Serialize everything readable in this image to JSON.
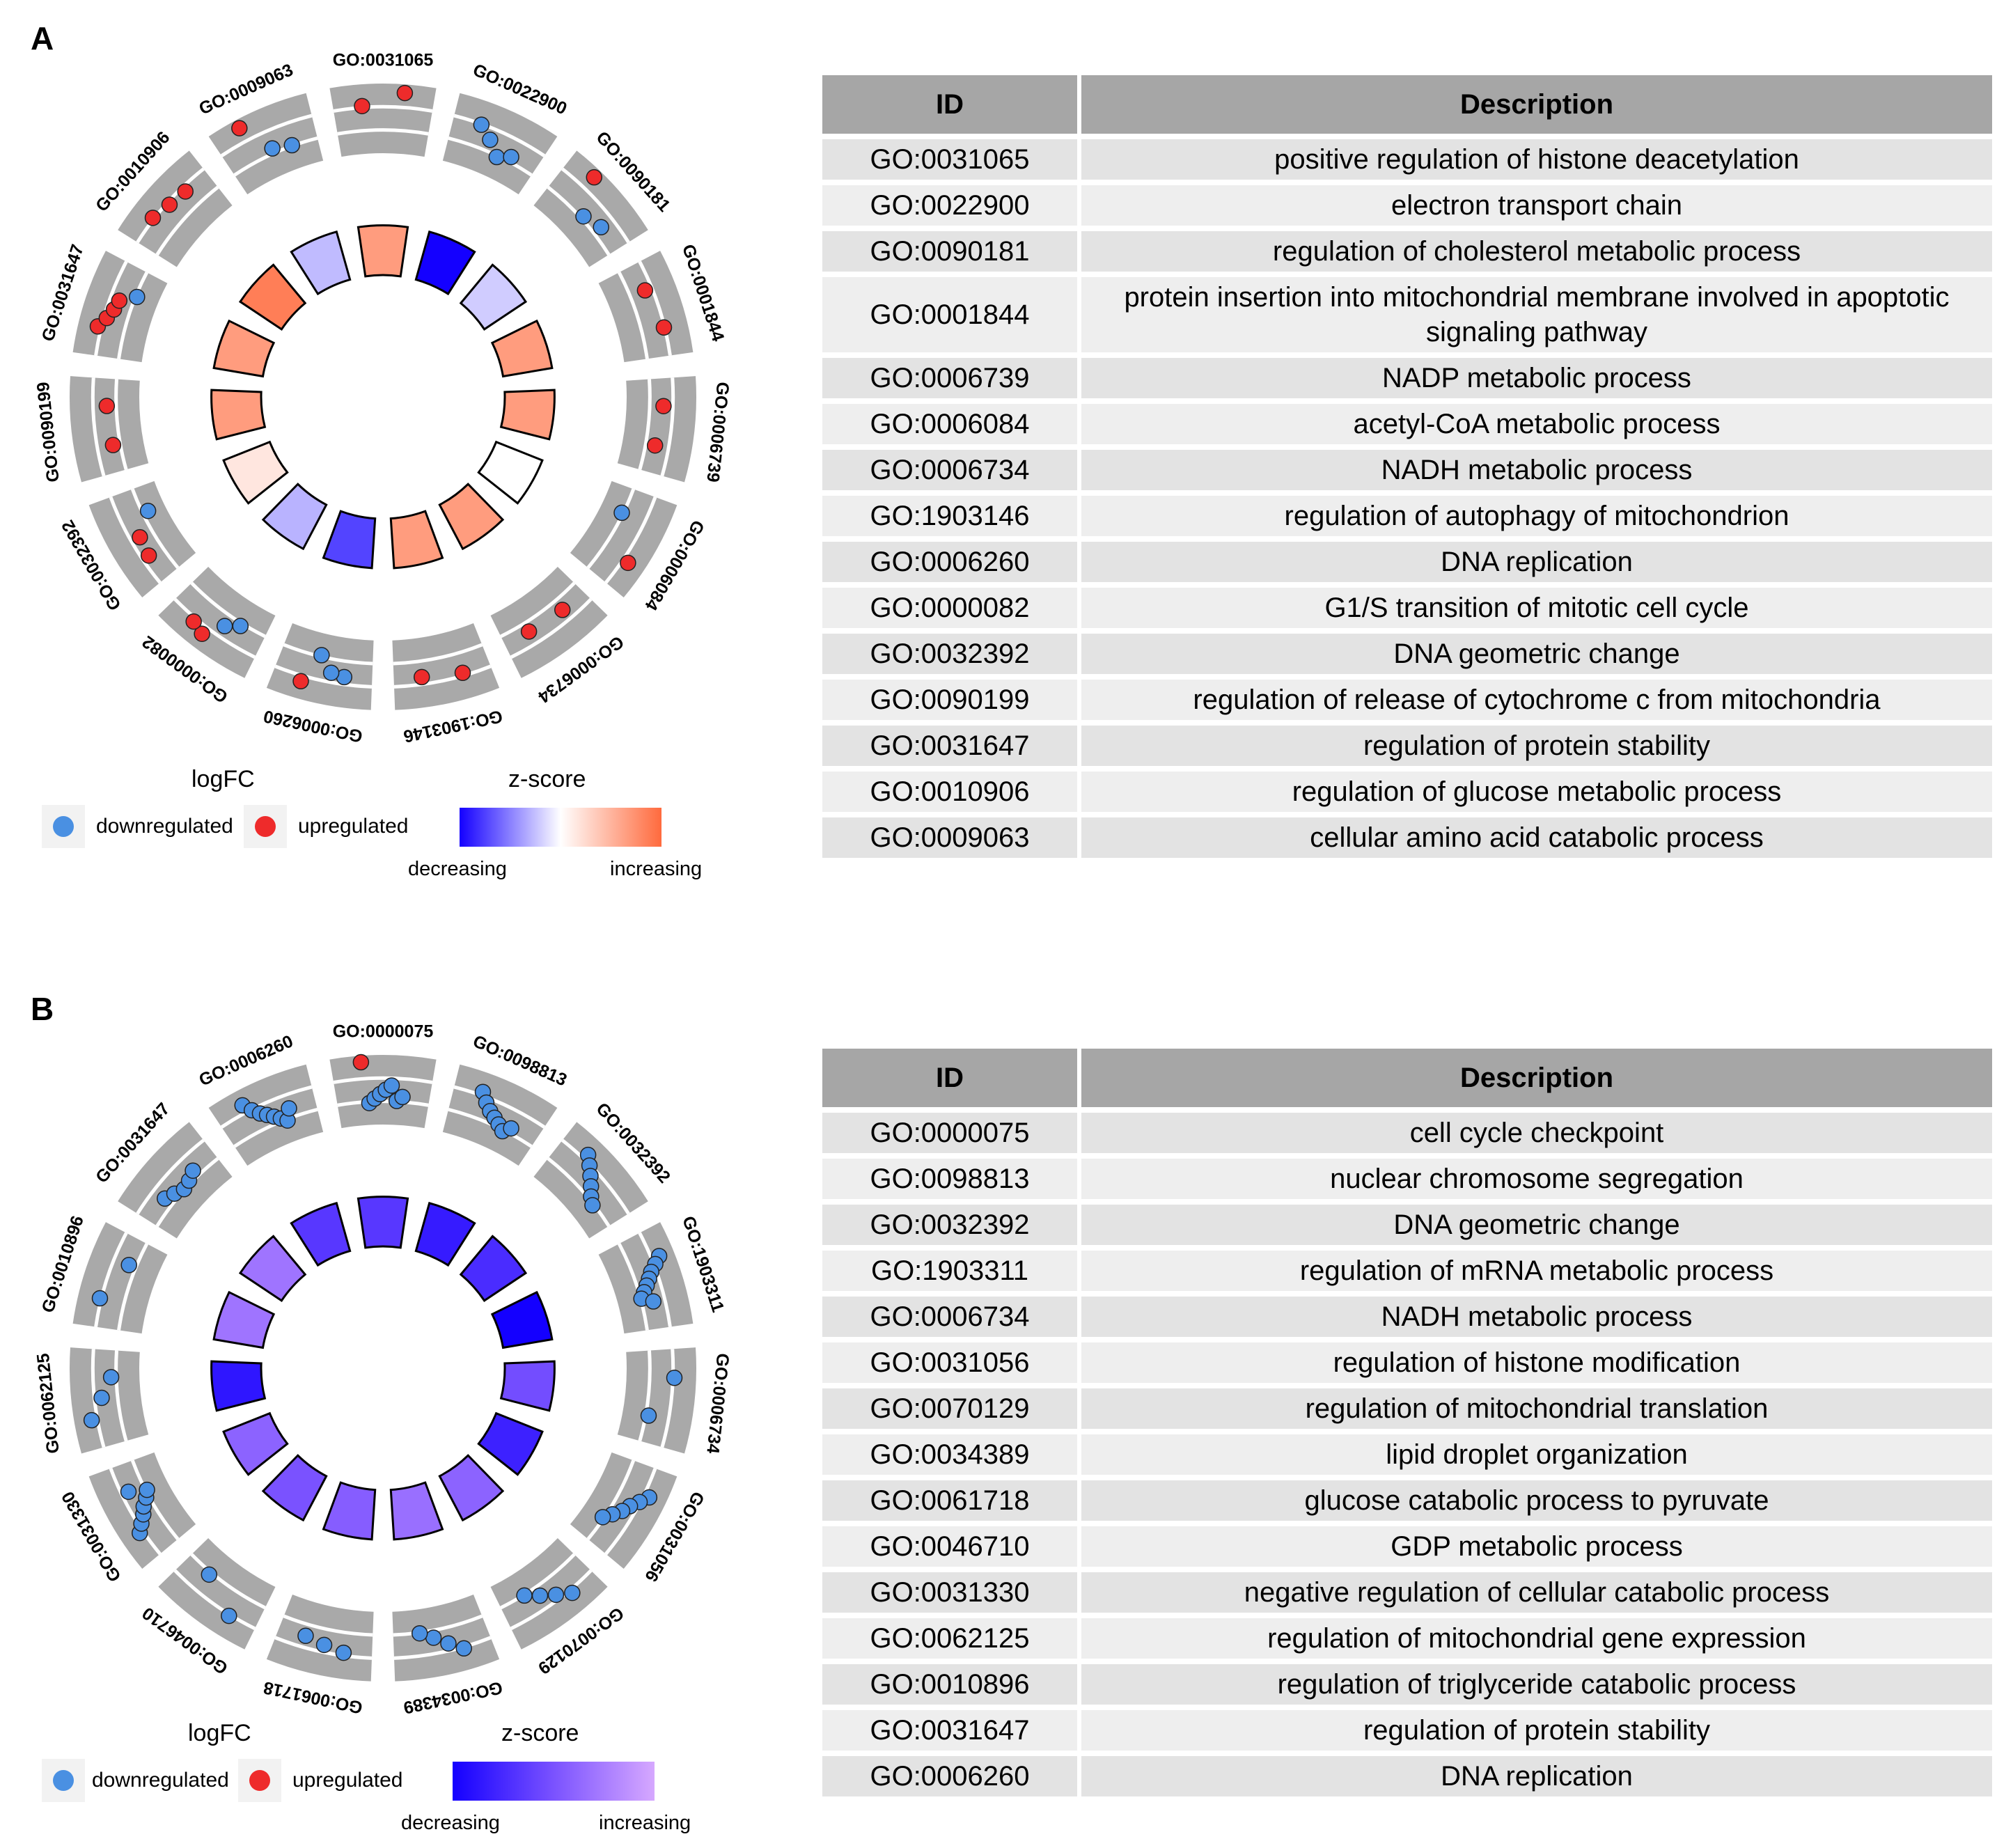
{
  "panels": [
    {
      "letter": "A",
      "logfc_legend": {
        "title": "logFC",
        "down_label": "downregulated",
        "up_label": "upregulated"
      },
      "zscore_legend": {
        "title": "z-score",
        "low_label": "decreasing",
        "high_label": "increasing",
        "low_color": "#1400ff",
        "mid_color": "#ffffff",
        "high_color": "#ff6a3d"
      },
      "table": {
        "headers": [
          "ID",
          "Description"
        ],
        "rows": [
          [
            "GO:0031065",
            "positive regulation of histone deacetylation"
          ],
          [
            "GO:0022900",
            "electron transport chain"
          ],
          [
            "GO:0090181",
            "regulation of cholesterol metabolic process"
          ],
          [
            "GO:0001844",
            "protein insertion into mitochondrial membrane involved in apoptotic signaling pathway"
          ],
          [
            "GO:0006739",
            "NADP metabolic process"
          ],
          [
            "GO:0006084",
            "acetyl-CoA metabolic process"
          ],
          [
            "GO:0006734",
            "NADH metabolic process"
          ],
          [
            "GO:1903146",
            "regulation of autophagy of mitochondrion"
          ],
          [
            "GO:0006260",
            "DNA replication"
          ],
          [
            "GO:0000082",
            "G1/S transition of mitotic cell cycle"
          ],
          [
            "GO:0032392",
            "DNA geometric change"
          ],
          [
            "GO:0090199",
            "regulation of release of cytochrome c from mitochondria"
          ],
          [
            "GO:0031647",
            "regulation of protein stability"
          ],
          [
            "GO:0010906",
            "regulation of glucose metabolic process"
          ],
          [
            "GO:0009063",
            "cellular amino acid catabolic process"
          ]
        ]
      }
    },
    {
      "letter": "B",
      "logfc_legend": {
        "title": "logFC",
        "down_label": "downregulated",
        "up_label": "upregulated"
      },
      "zscore_legend": {
        "title": "z-score",
        "low_label": "decreasing",
        "high_label": "increasing",
        "low_color": "#1400ff",
        "mid_color": "#7a52ff",
        "high_color": "#d6a8ff"
      },
      "table": {
        "headers": [
          "ID",
          "Description"
        ],
        "rows": [
          [
            "GO:0000075",
            "cell cycle checkpoint"
          ],
          [
            "GO:0098813",
            "nuclear chromosome segregation"
          ],
          [
            "GO:0032392",
            "DNA geometric change"
          ],
          [
            "GO:1903311",
            "regulation of mRNA metabolic process"
          ],
          [
            "GO:0006734",
            "NADH metabolic process"
          ],
          [
            "GO:0031056",
            "regulation of histone modification"
          ],
          [
            "GO:0070129",
            "regulation of mitochondrial translation"
          ],
          [
            "GO:0034389",
            "lipid droplet organization"
          ],
          [
            "GO:0061718",
            "glucose catabolic process to pyruvate"
          ],
          [
            "GO:0046710",
            "GDP metabolic process"
          ],
          [
            "GO:0031330",
            "negative regulation of cellular catabolic process"
          ],
          [
            "GO:0062125",
            "regulation of mitochondrial gene expression"
          ],
          [
            "GO:0010896",
            "regulation of triglyceride catabolic process"
          ],
          [
            "GO:0031647",
            "regulation of protein stability"
          ],
          [
            "GO:0006260",
            "DNA replication"
          ]
        ]
      }
    }
  ],
  "chart_data": [
    {
      "type": "circular-goplot",
      "panel": "A",
      "logfc_legend_title": "logFC",
      "zscore_legend_title": "z-score",
      "zscore_range": [
        -3,
        3
      ],
      "terms": [
        {
          "id": "GO:0031065",
          "zscore": 2.0,
          "bar_height": 0.85,
          "genes": [
            {
              "lfc": 2.2,
              "dir": "up"
            },
            {
              "lfc": 2.8,
              "dir": "up"
            }
          ]
        },
        {
          "id": "GO:0022900",
          "zscore": -3.0,
          "bar_height": 0.85,
          "genes": [
            {
              "lfc": 2.1,
              "dir": "down"
            },
            {
              "lfc": 1.6,
              "dir": "down"
            },
            {
              "lfc": 1.0,
              "dir": "down"
            },
            {
              "lfc": 1.3,
              "dir": "down"
            }
          ]
        },
        {
          "id": "GO:0090181",
          "zscore": -0.6,
          "bar_height": 0.85,
          "genes": [
            {
              "lfc": 2.8,
              "dir": "up"
            },
            {
              "lfc": 1.2,
              "dir": "down"
            },
            {
              "lfc": 1.5,
              "dir": "down"
            }
          ]
        },
        {
          "id": "GO:0001844",
          "zscore": 2.0,
          "bar_height": 0.85,
          "genes": [
            {
              "lfc": 1.8,
              "dir": "up"
            },
            {
              "lfc": 2.1,
              "dir": "up"
            }
          ]
        },
        {
          "id": "GO:0006739",
          "zscore": 2.0,
          "bar_height": 0.85,
          "genes": [
            {
              "lfc": 1.7,
              "dir": "up"
            },
            {
              "lfc": 1.5,
              "dir": "up"
            }
          ]
        },
        {
          "id": "GO:0006084",
          "zscore": 0.0,
          "bar_height": 0.85,
          "genes": [
            {
              "lfc": 1.0,
              "dir": "down"
            },
            {
              "lfc": 2.4,
              "dir": "up"
            }
          ]
        },
        {
          "id": "GO:0006734",
          "zscore": 2.0,
          "bar_height": 0.85,
          "genes": [
            {
              "lfc": 1.6,
              "dir": "up"
            },
            {
              "lfc": 1.5,
              "dir": "up"
            }
          ]
        },
        {
          "id": "GO:1903146",
          "zscore": 2.0,
          "bar_height": 0.85,
          "genes": [
            {
              "lfc": 2.0,
              "dir": "up"
            },
            {
              "lfc": 1.8,
              "dir": "up"
            }
          ]
        },
        {
          "id": "GO:0006260",
          "zscore": -2.2,
          "bar_height": 0.85,
          "genes": [
            {
              "lfc": 1.8,
              "dir": "down"
            },
            {
              "lfc": 1.7,
              "dir": "down"
            },
            {
              "lfc": 1.0,
              "dir": "down"
            },
            {
              "lfc": 2.4,
              "dir": "up"
            }
          ]
        },
        {
          "id": "GO:0000082",
          "zscore": -0.9,
          "bar_height": 0.85,
          "genes": [
            {
              "lfc": 1.2,
              "dir": "down"
            },
            {
              "lfc": 1.6,
              "dir": "down"
            },
            {
              "lfc": 2.5,
              "dir": "up"
            },
            {
              "lfc": 2.3,
              "dir": "up"
            }
          ]
        },
        {
          "id": "GO:0032392",
          "zscore": 0.5,
          "bar_height": 0.85,
          "genes": [
            {
              "lfc": 1.8,
              "dir": "up"
            },
            {
              "lfc": 1.7,
              "dir": "up"
            },
            {
              "lfc": 0.8,
              "dir": "down"
            }
          ]
        },
        {
          "id": "GO:0090199",
          "zscore": 2.0,
          "bar_height": 0.85,
          "genes": [
            {
              "lfc": 1.4,
              "dir": "up"
            },
            {
              "lfc": 1.5,
              "dir": "up"
            }
          ]
        },
        {
          "id": "GO:0031647",
          "zscore": 2.0,
          "bar_height": 0.85,
          "genes": [
            {
              "lfc": 2.3,
              "dir": "up"
            },
            {
              "lfc": 2.0,
              "dir": "up"
            },
            {
              "lfc": 1.8,
              "dir": "up"
            },
            {
              "lfc": 1.7,
              "dir": "up"
            },
            {
              "lfc": 1.0,
              "dir": "down"
            }
          ]
        },
        {
          "id": "GO:0010906",
          "zscore": 2.6,
          "bar_height": 0.85,
          "genes": [
            {
              "lfc": 2.2,
              "dir": "up"
            },
            {
              "lfc": 2.0,
              "dir": "up"
            },
            {
              "lfc": 1.9,
              "dir": "up"
            }
          ]
        },
        {
          "id": "GO:0009063",
          "zscore": -0.8,
          "bar_height": 0.85,
          "genes": [
            {
              "lfc": 2.8,
              "dir": "up"
            },
            {
              "lfc": 1.3,
              "dir": "down"
            },
            {
              "lfc": 1.1,
              "dir": "down"
            }
          ]
        }
      ]
    },
    {
      "type": "circular-goplot",
      "panel": "B",
      "logfc_legend_title": "logFC",
      "zscore_legend_title": "z-score",
      "zscore_range": [
        -3,
        0
      ],
      "terms": [
        {
          "id": "GO:0000075",
          "zscore": -2.0,
          "bar_height": 0.85,
          "genes": [
            {
              "lfc": 2.9,
              "dir": "up"
            },
            {
              "lfc": 1.0,
              "dir": "down"
            },
            {
              "lfc": 1.2,
              "dir": "down"
            },
            {
              "lfc": 1.4,
              "dir": "down"
            },
            {
              "lfc": 1.6,
              "dir": "down"
            },
            {
              "lfc": 1.8,
              "dir": "down"
            },
            {
              "lfc": 1.1,
              "dir": "down"
            },
            {
              "lfc": 1.3,
              "dir": "down"
            }
          ]
        },
        {
          "id": "GO:0098813",
          "zscore": -2.5,
          "bar_height": 0.85,
          "genes": [
            {
              "lfc": 2.3,
              "dir": "down"
            },
            {
              "lfc": 1.9,
              "dir": "down"
            },
            {
              "lfc": 1.6,
              "dir": "down"
            },
            {
              "lfc": 1.4,
              "dir": "down"
            },
            {
              "lfc": 1.2,
              "dir": "down"
            },
            {
              "lfc": 1.0,
              "dir": "down"
            },
            {
              "lfc": 1.3,
              "dir": "down"
            }
          ]
        },
        {
          "id": "GO:0032392",
          "zscore": -2.2,
          "bar_height": 0.85,
          "genes": [
            {
              "lfc": 2.4,
              "dir": "down"
            },
            {
              "lfc": 2.1,
              "dir": "down"
            },
            {
              "lfc": 1.8,
              "dir": "down"
            },
            {
              "lfc": 1.5,
              "dir": "down"
            },
            {
              "lfc": 1.2,
              "dir": "down"
            },
            {
              "lfc": 1.0,
              "dir": "down"
            }
          ]
        },
        {
          "id": "GO:1903311",
          "zscore": -3.0,
          "bar_height": 0.85,
          "genes": [
            {
              "lfc": 2.5,
              "dir": "down"
            },
            {
              "lfc": 2.2,
              "dir": "down"
            },
            {
              "lfc": 1.9,
              "dir": "down"
            },
            {
              "lfc": 1.7,
              "dir": "down"
            },
            {
              "lfc": 1.5,
              "dir": "down"
            },
            {
              "lfc": 1.3,
              "dir": "down"
            },
            {
              "lfc": 1.1,
              "dir": "down"
            },
            {
              "lfc": 1.6,
              "dir": "down"
            }
          ]
        },
        {
          "id": "GO:0006734",
          "zscore": -1.6,
          "bar_height": 0.85,
          "genes": [
            {
              "lfc": 2.2,
              "dir": "down"
            },
            {
              "lfc": 1.2,
              "dir": "down"
            }
          ]
        },
        {
          "id": "GO:0031056",
          "zscore": -2.4,
          "bar_height": 0.85,
          "genes": [
            {
              "lfc": 2.4,
              "dir": "down"
            },
            {
              "lfc": 2.1,
              "dir": "down"
            },
            {
              "lfc": 1.8,
              "dir": "down"
            },
            {
              "lfc": 1.6,
              "dir": "down"
            },
            {
              "lfc": 1.3,
              "dir": "down"
            },
            {
              "lfc": 1.0,
              "dir": "down"
            }
          ]
        },
        {
          "id": "GO:0070129",
          "zscore": -1.2,
          "bar_height": 0.85,
          "genes": [
            {
              "lfc": 2.3,
              "dir": "down"
            },
            {
              "lfc": 1.9,
              "dir": "down"
            },
            {
              "lfc": 1.5,
              "dir": "down"
            },
            {
              "lfc": 1.1,
              "dir": "down"
            }
          ]
        },
        {
          "id": "GO:0034389",
          "zscore": -1.0,
          "bar_height": 0.85,
          "genes": [
            {
              "lfc": 2.2,
              "dir": "down"
            },
            {
              "lfc": 1.8,
              "dir": "down"
            },
            {
              "lfc": 1.4,
              "dir": "down"
            },
            {
              "lfc": 1.1,
              "dir": "down"
            }
          ]
        },
        {
          "id": "GO:0061718",
          "zscore": -1.3,
          "bar_height": 0.85,
          "genes": [
            {
              "lfc": 2.0,
              "dir": "down"
            },
            {
              "lfc": 1.8,
              "dir": "down"
            },
            {
              "lfc": 1.6,
              "dir": "down"
            }
          ]
        },
        {
          "id": "GO:0046710",
          "zscore": -1.5,
          "bar_height": 0.85,
          "genes": [
            {
              "lfc": 2.2,
              "dir": "down"
            },
            {
              "lfc": 1.2,
              "dir": "down"
            }
          ]
        },
        {
          "id": "GO:0031330",
          "zscore": -1.2,
          "bar_height": 0.85,
          "genes": [
            {
              "lfc": 2.3,
              "dir": "down"
            },
            {
              "lfc": 2.0,
              "dir": "down"
            },
            {
              "lfc": 1.7,
              "dir": "down"
            },
            {
              "lfc": 1.5,
              "dir": "down"
            },
            {
              "lfc": 1.2,
              "dir": "down"
            },
            {
              "lfc": 1.0,
              "dir": "down"
            },
            {
              "lfc": 1.8,
              "dir": "down"
            }
          ]
        },
        {
          "id": "GO:0062125",
          "zscore": -2.6,
          "bar_height": 0.85,
          "genes": [
            {
              "lfc": 2.4,
              "dir": "down"
            },
            {
              "lfc": 1.8,
              "dir": "down"
            },
            {
              "lfc": 1.3,
              "dir": "down"
            }
          ]
        },
        {
          "id": "GO:0010896",
          "zscore": -0.9,
          "bar_height": 0.85,
          "genes": [
            {
              "lfc": 2.2,
              "dir": "down"
            },
            {
              "lfc": 1.4,
              "dir": "down"
            }
          ]
        },
        {
          "id": "GO:0031647",
          "zscore": -0.9,
          "bar_height": 0.85,
          "genes": [
            {
              "lfc": 1.5,
              "dir": "down"
            },
            {
              "lfc": 1.3,
              "dir": "down"
            },
            {
              "lfc": 1.1,
              "dir": "down"
            },
            {
              "lfc": 1.2,
              "dir": "down"
            },
            {
              "lfc": 1.4,
              "dir": "down"
            }
          ]
        },
        {
          "id": "GO:0006260",
          "zscore": -2.0,
          "bar_height": 0.85,
          "genes": [
            {
              "lfc": 2.5,
              "dir": "down"
            },
            {
              "lfc": 2.1,
              "dir": "down"
            },
            {
              "lfc": 1.8,
              "dir": "down"
            },
            {
              "lfc": 1.6,
              "dir": "down"
            },
            {
              "lfc": 1.4,
              "dir": "down"
            },
            {
              "lfc": 1.2,
              "dir": "down"
            },
            {
              "lfc": 1.0,
              "dir": "down"
            },
            {
              "lfc": 1.5,
              "dir": "down"
            }
          ]
        }
      ]
    }
  ]
}
